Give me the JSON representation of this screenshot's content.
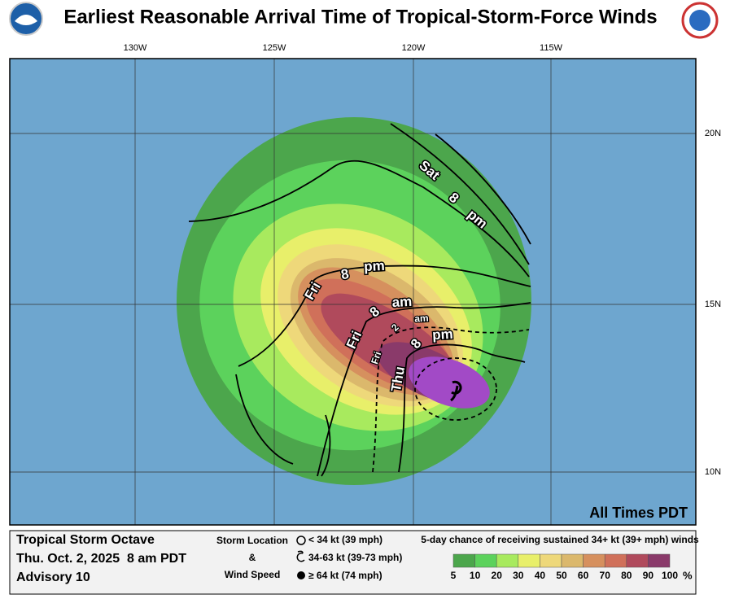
{
  "header": {
    "title": "Earliest Reasonable Arrival Time of Tropical-Storm-Force Winds"
  },
  "map": {
    "longitudes": [
      "130W",
      "125W",
      "120W",
      "115W"
    ],
    "latitudes": [
      "20N",
      "15N",
      "10N"
    ],
    "contour_labels": [
      [
        "Sat",
        "8",
        "pm"
      ],
      [
        "Fri",
        "8",
        "pm"
      ],
      [
        "Fri",
        "8",
        "am"
      ],
      [
        "Fri",
        "2",
        "am"
      ],
      [
        "Thu",
        "8",
        "pm"
      ]
    ],
    "note": "All Times PDT"
  },
  "footer": {
    "storm": "Tropical Storm Octave",
    "time": "Thu. Oct. 2, 2025  8 am PDT",
    "advisory": "Advisory 10",
    "key_title": [
      "Storm Location",
      "&",
      "Wind Speed"
    ],
    "key_items": [
      "< 34 kt (39 mph)",
      "34-63 kt (39-73 mph)",
      "≥ 64 kt (74 mph)"
    ],
    "scale_title": "5-day chance of receiving sustained 34+ kt (39+ mph) winds",
    "scale_labels": [
      5,
      10,
      20,
      30,
      40,
      50,
      60,
      70,
      80,
      90,
      100
    ],
    "scale_unit": "%",
    "scale_colors": [
      "#4ca64c",
      "#5cd25c",
      "#a8ea5e",
      "#e8ef6a",
      "#eed87a",
      "#dbb86c",
      "#d6905e",
      "#d0705a",
      "#b04a5c",
      "#8a3a6a",
      "#a24ac6"
    ]
  }
}
